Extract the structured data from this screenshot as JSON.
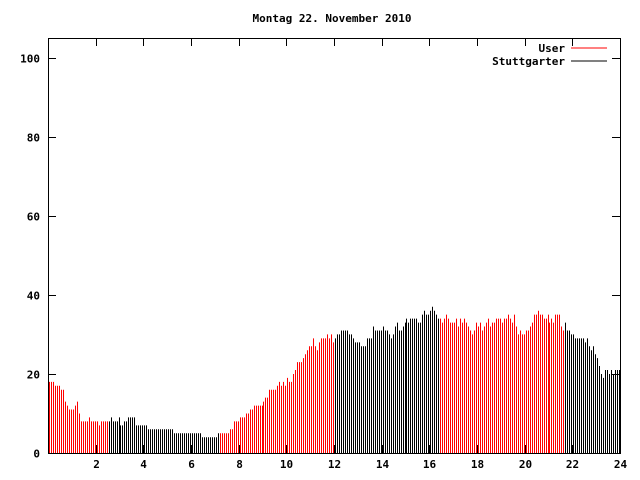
{
  "chart_data": {
    "type": "bar",
    "title": "Montag 22. November 2010",
    "xlabel": "",
    "ylabel": "",
    "xlim": [
      0,
      24
    ],
    "ylim": [
      0,
      105
    ],
    "x_ticks": [
      2,
      4,
      6,
      8,
      10,
      12,
      14,
      16,
      18,
      20,
      22,
      24
    ],
    "y_ticks": [
      0,
      20,
      40,
      60,
      80,
      100
    ],
    "grid": false,
    "legend_position": "top-right",
    "interval_minutes": 5,
    "series": [
      {
        "name": "User",
        "color": "#ff0000"
      },
      {
        "name": "Stuttgarter",
        "color": "#000000"
      }
    ],
    "segments": [
      {
        "from": 0,
        "to": 2.5,
        "series": "User"
      },
      {
        "from": 2.5,
        "to": 7.2,
        "series": "Stuttgarter"
      },
      {
        "from": 7.2,
        "to": 12,
        "series": "User"
      },
      {
        "from": 12,
        "to": 16.4,
        "series": "Stuttgarter"
      },
      {
        "from": 16.4,
        "to": 21.7,
        "series": "User"
      },
      {
        "from": 21.7,
        "to": 24,
        "series": "Stuttgarter"
      }
    ],
    "values": [
      18,
      18,
      18,
      17,
      17,
      17,
      16,
      16,
      13,
      12,
      11,
      11,
      11,
      12,
      13,
      10,
      8,
      8,
      8,
      8,
      9,
      8,
      8,
      8,
      8,
      7,
      8,
      8,
      8,
      8,
      8,
      9,
      8,
      8,
      8,
      9,
      7,
      7,
      8,
      8,
      9,
      9,
      9,
      9,
      7,
      7,
      7,
      7,
      7,
      7,
      6,
      6,
      6,
      6,
      6,
      6,
      6,
      6,
      6,
      6,
      6,
      6,
      6,
      5,
      5,
      5,
      5,
      5,
      5,
      5,
      5,
      5,
      5,
      5,
      5,
      5,
      5,
      4,
      4,
      4,
      4,
      4,
      4,
      4,
      4,
      5,
      5,
      5,
      5,
      5,
      5,
      6,
      6,
      8,
      8,
      8,
      9,
      9,
      9,
      10,
      10,
      11,
      11,
      12,
      12,
      12,
      12,
      12,
      13,
      14,
      14,
      16,
      16,
      16,
      16,
      17,
      18,
      17,
      18,
      17,
      19,
      18,
      18,
      20,
      21,
      23,
      23,
      23,
      24,
      25,
      26,
      27,
      27,
      29,
      27,
      26,
      28,
      29,
      29,
      29,
      30,
      29,
      30,
      28,
      29,
      30,
      30,
      31,
      31,
      31,
      31,
      30,
      30,
      29,
      28,
      28,
      28,
      27,
      27,
      27,
      29,
      29,
      29,
      32,
      31,
      31,
      31,
      31,
      32,
      31,
      31,
      30,
      29,
      30,
      32,
      33,
      31,
      31,
      32,
      33,
      34,
      33,
      34,
      34,
      34,
      34,
      33,
      33,
      35,
      36,
      35,
      35,
      36,
      37,
      36,
      35,
      34,
      34,
      33,
      34,
      35,
      34,
      33,
      33,
      33,
      34,
      32,
      34,
      33,
      34,
      33,
      32,
      31,
      30,
      31,
      33,
      32,
      33,
      31,
      32,
      33,
      34,
      32,
      33,
      33,
      34,
      34,
      34,
      33,
      34,
      34,
      35,
      34,
      33,
      35,
      32,
      30,
      31,
      30,
      30,
      31,
      31,
      32,
      33,
      35,
      35,
      36,
      35,
      35,
      34,
      34,
      35,
      33,
      34,
      33,
      35,
      35,
      35,
      32,
      31,
      33,
      31,
      31,
      30,
      30,
      29,
      29,
      29,
      29,
      29,
      28,
      29,
      27,
      26,
      27,
      25,
      24,
      22,
      20,
      19,
      21,
      21,
      20,
      21,
      20,
      21,
      21,
      21
    ]
  }
}
